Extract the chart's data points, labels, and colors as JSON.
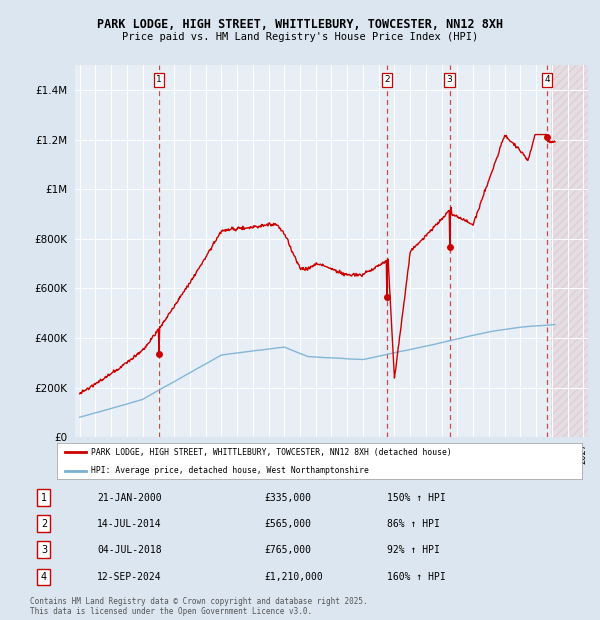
{
  "title_line1": "PARK LODGE, HIGH STREET, WHITTLEBURY, TOWCESTER, NN12 8XH",
  "title_line2": "Price paid vs. HM Land Registry's House Price Index (HPI)",
  "bg_color": "#dce6f0",
  "plot_bg_color": "#e8eef5",
  "grid_color": "#ffffff",
  "hpi_color": "#7ab0d4",
  "price_color": "#cc0000",
  "xlim_start": 1994.7,
  "xlim_end": 2027.3,
  "ylim_min": 0,
  "ylim_max": 1500000,
  "yticks": [
    0,
    200000,
    400000,
    600000,
    800000,
    1000000,
    1200000,
    1400000
  ],
  "ytick_labels": [
    "£0",
    "£200K",
    "£400K",
    "£600K",
    "£800K",
    "£1M",
    "£1.2M",
    "£1.4M"
  ],
  "sale_year_nums": [
    2000.055,
    2014.535,
    2018.504,
    2024.706
  ],
  "sale_prices": [
    335000,
    565000,
    765000,
    1210000
  ],
  "sale_labels": [
    "1",
    "2",
    "3",
    "4"
  ],
  "sale_pct": [
    "150% ↑ HPI",
    "86% ↑ HPI",
    "92% ↑ HPI",
    "160% ↑ HPI"
  ],
  "sale_dates_text": [
    "21-JAN-2000",
    "14-JUL-2014",
    "04-JUL-2018",
    "12-SEP-2024"
  ],
  "sale_prices_text": [
    "£335,000",
    "£565,000",
    "£765,000",
    "£1,210,000"
  ],
  "legend_line1": "PARK LODGE, HIGH STREET, WHITTLEBURY, TOWCESTER, NN12 8XH (detached house)",
  "legend_line2": "HPI: Average price, detached house, West Northamptonshire",
  "footer_line1": "Contains HM Land Registry data © Crown copyright and database right 2025.",
  "footer_line2": "This data is licensed under the Open Government Licence v3.0.",
  "future_start": 2024.95,
  "hatch_color": "#cc6666"
}
